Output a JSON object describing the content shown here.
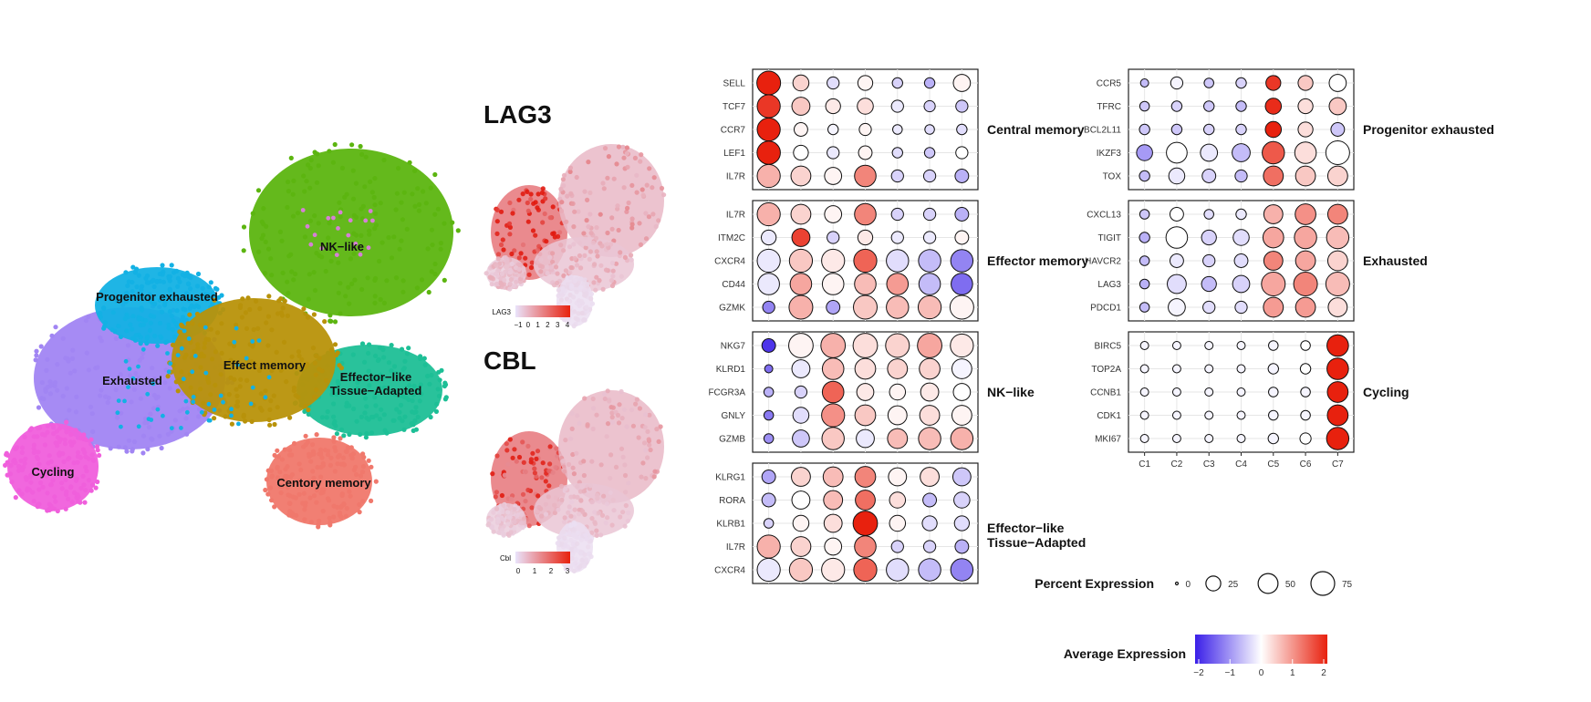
{
  "umap": {
    "clusters": [
      {
        "label": "NK−like",
        "color": "#5cb510"
      },
      {
        "label": "Progenitor exhausted",
        "color": "#13b1e4"
      },
      {
        "label": "Exhausted",
        "color": "#a185f3"
      },
      {
        "label": "Effect memory",
        "color": "#b8920a"
      },
      {
        "label": "Effector−like\nTissue−Adapted",
        "color": "#1dbf96"
      },
      {
        "label": "Cycling",
        "color": "#f05fdc"
      },
      {
        "label": "Centory memory",
        "color": "#f0786c"
      }
    ]
  },
  "feature_plots": [
    {
      "title": "LAG3",
      "legend_label": "LAG3",
      "ticks": [
        "−1",
        "0",
        "1",
        "2",
        "3",
        "4"
      ]
    },
    {
      "title": "CBL",
      "legend_label": "Cbl",
      "ticks": [
        "0",
        "1",
        "2",
        "3"
      ]
    }
  ],
  "chart_data": {
    "type": "dotplot",
    "x_categories": [
      "C1",
      "C2",
      "C3",
      "C4",
      "C5",
      "C6",
      "C7"
    ],
    "panels": [
      {
        "label": "Central memory",
        "column": 1,
        "rows": [
          {
            "gene": "SELL",
            "avg": [
              2.0,
              0.4,
              -0.3,
              0.1,
              -0.4,
              -0.7,
              0.1
            ],
            "pct": [
              75,
              30,
              15,
              25,
              10,
              10,
              35
            ]
          },
          {
            "gene": "TCF7",
            "avg": [
              1.8,
              0.5,
              0.2,
              0.3,
              -0.2,
              -0.4,
              -0.5
            ],
            "pct": [
              70,
              40,
              25,
              30,
              15,
              12,
              15
            ]
          },
          {
            "gene": "CCR7",
            "avg": [
              2.0,
              0.1,
              -0.1,
              0.1,
              -0.2,
              -0.3,
              -0.3
            ],
            "pct": [
              70,
              20,
              10,
              15,
              8,
              8,
              10
            ]
          },
          {
            "gene": "LEF1",
            "avg": [
              2.2,
              0.0,
              -0.2,
              0.1,
              -0.3,
              -0.5,
              0.0
            ],
            "pct": [
              72,
              25,
              15,
              20,
              10,
              10,
              15
            ]
          },
          {
            "gene": "IL7R",
            "avg": [
              0.7,
              0.4,
              0.1,
              1.1,
              -0.4,
              -0.4,
              -0.7
            ],
            "pct": [
              70,
              50,
              35,
              60,
              15,
              15,
              20
            ]
          }
        ]
      },
      {
        "label": "Effector memory",
        "column": 1,
        "rows": [
          {
            "gene": "IL7R",
            "avg": [
              0.7,
              0.4,
              0.1,
              1.1,
              -0.4,
              -0.4,
              -0.7
            ],
            "pct": [
              70,
              50,
              35,
              60,
              15,
              15,
              20
            ]
          },
          {
            "gene": "ITM2C",
            "avg": [
              -0.2,
              1.7,
              -0.4,
              0.2,
              -0.2,
              -0.2,
              0.1
            ],
            "pct": [
              25,
              40,
              15,
              25,
              15,
              15,
              20
            ]
          },
          {
            "gene": "CXCR4",
            "avg": [
              -0.2,
              0.5,
              0.2,
              1.4,
              -0.3,
              -0.6,
              -1.1
            ],
            "pct": [
              70,
              70,
              70,
              70,
              65,
              65,
              65
            ]
          },
          {
            "gene": "CD44",
            "avg": [
              -0.2,
              0.8,
              0.1,
              0.6,
              0.9,
              -0.6,
              -1.3
            ],
            "pct": [
              60,
              60,
              60,
              60,
              60,
              60,
              60
            ]
          },
          {
            "gene": "GZMK",
            "avg": [
              -1.1,
              0.7,
              -0.8,
              0.5,
              0.6,
              0.6,
              0.1
            ],
            "pct": [
              15,
              75,
              20,
              75,
              65,
              70,
              75
            ]
          }
        ]
      },
      {
        "label": "NK−like",
        "column": 1,
        "rows": [
          {
            "gene": "NKG7",
            "avg": [
              -1.8,
              0.1,
              0.7,
              0.3,
              0.4,
              0.8,
              0.2
            ],
            "pct": [
              20,
              80,
              80,
              80,
              75,
              80,
              70
            ]
          },
          {
            "gene": "KLRD1",
            "avg": [
              -1.3,
              -0.2,
              0.6,
              0.3,
              0.4,
              0.4,
              -0.1
            ],
            "pct": [
              5,
              40,
              60,
              55,
              50,
              55,
              50
            ]
          },
          {
            "gene": "FCGR3A",
            "avg": [
              -0.7,
              -0.4,
              1.4,
              0.2,
              0.1,
              0.2,
              0.0
            ],
            "pct": [
              8,
              15,
              60,
              35,
              30,
              40,
              35
            ]
          },
          {
            "gene": "GNLY",
            "avg": [
              -1.2,
              -0.3,
              1.0,
              0.5,
              0.1,
              0.3,
              0.1
            ],
            "pct": [
              8,
              30,
              70,
              55,
              45,
              50,
              50
            ]
          },
          {
            "gene": "GZMB",
            "avg": [
              -1.0,
              -0.5,
              0.5,
              -0.2,
              0.6,
              0.6,
              0.7
            ],
            "pct": [
              8,
              35,
              65,
              40,
              50,
              65,
              65
            ]
          }
        ]
      },
      {
        "label": "Effector−like\nTissue−Adapted",
        "column": 1,
        "rows": [
          {
            "gene": "KLRG1",
            "avg": [
              -0.8,
              0.4,
              0.6,
              1.1,
              0.1,
              0.3,
              -0.5
            ],
            "pct": [
              20,
              45,
              50,
              55,
              40,
              45,
              40
            ]
          },
          {
            "gene": "RORA",
            "avg": [
              -0.6,
              0.0,
              0.6,
              1.3,
              0.3,
              -0.6,
              -0.4
            ],
            "pct": [
              20,
              40,
              45,
              50,
              30,
              20,
              30
            ]
          },
          {
            "gene": "KLRB1",
            "avg": [
              -0.4,
              0.1,
              0.3,
              2.0,
              0.1,
              -0.3,
              -0.3
            ],
            "pct": [
              8,
              30,
              40,
              80,
              30,
              25,
              25
            ]
          },
          {
            "gene": "IL7R",
            "avg": [
              0.7,
              0.4,
              0.1,
              1.1,
              -0.4,
              -0.4,
              -0.7
            ],
            "pct": [
              70,
              50,
              35,
              60,
              15,
              15,
              20
            ]
          },
          {
            "gene": "CXCR4",
            "avg": [
              -0.2,
              0.5,
              0.2,
              1.4,
              -0.3,
              -0.6,
              -1.1
            ],
            "pct": [
              70,
              70,
              70,
              70,
              65,
              65,
              65
            ]
          }
        ]
      },
      {
        "label": "Progenitor exhausted",
        "column": 2,
        "rows": [
          {
            "gene": "CCR5",
            "avg": [
              -0.6,
              -0.1,
              -0.5,
              -0.4,
              1.8,
              0.5,
              0.0
            ],
            "pct": [
              5,
              15,
              8,
              10,
              25,
              25,
              35
            ]
          },
          {
            "gene": "TFRC",
            "avg": [
              -0.5,
              -0.4,
              -0.5,
              -0.6,
              1.9,
              0.3,
              0.5
            ],
            "pct": [
              8,
              10,
              10,
              10,
              30,
              25,
              35
            ]
          },
          {
            "gene": "BCL2L11",
            "avg": [
              -0.5,
              -0.5,
              -0.4,
              -0.4,
              2.0,
              0.3,
              -0.5
            ],
            "pct": [
              10,
              10,
              10,
              10,
              30,
              25,
              20
            ]
          },
          {
            "gene": "IKZF3",
            "avg": [
              -0.9,
              0.0,
              -0.2,
              -0.6,
              1.5,
              0.3,
              0.0
            ],
            "pct": [
              30,
              55,
              35,
              40,
              65,
              60,
              75
            ]
          },
          {
            "gene": "TOX",
            "avg": [
              -0.6,
              -0.2,
              -0.4,
              -0.6,
              1.3,
              0.5,
              0.4
            ],
            "pct": [
              10,
              30,
              20,
              15,
              50,
              50,
              50
            ]
          }
        ]
      },
      {
        "label": "Exhausted",
        "column": 2,
        "rows": [
          {
            "gene": "CXCL13",
            "avg": [
              -0.5,
              0.0,
              -0.3,
              -0.2,
              0.7,
              1.0,
              1.1
            ],
            "pct": [
              8,
              20,
              8,
              10,
              45,
              55,
              50
            ]
          },
          {
            "gene": "TIGIT",
            "avg": [
              -0.7,
              0.0,
              -0.4,
              -0.3,
              0.8,
              0.8,
              0.6
            ],
            "pct": [
              10,
              60,
              25,
              30,
              55,
              65,
              65
            ]
          },
          {
            "gene": "HAVCR2",
            "avg": [
              -0.6,
              -0.2,
              -0.4,
              -0.3,
              1.1,
              0.8,
              0.4
            ],
            "pct": [
              8,
              20,
              15,
              20,
              45,
              50,
              50
            ]
          },
          {
            "gene": "LAG3",
            "avg": [
              -0.7,
              -0.3,
              -0.6,
              -0.4,
              0.8,
              1.1,
              0.6
            ],
            "pct": [
              8,
              45,
              25,
              35,
              75,
              75,
              75
            ]
          },
          {
            "gene": "PDCD1",
            "avg": [
              -0.6,
              -0.1,
              -0.3,
              -0.3,
              0.9,
              0.9,
              0.3
            ],
            "pct": [
              8,
              35,
              15,
              15,
              50,
              50,
              45
            ]
          }
        ]
      },
      {
        "label": "Cycling",
        "column": 2,
        "rows": [
          {
            "gene": "BIRC5",
            "avg": [
              -0.1,
              -0.1,
              -0.1,
              -0.1,
              -0.1,
              0.0,
              2.2
            ],
            "pct": [
              5,
              5,
              5,
              5,
              8,
              8,
              60
            ]
          },
          {
            "gene": "TOP2A",
            "avg": [
              -0.1,
              -0.1,
              -0.1,
              -0.1,
              -0.1,
              0.0,
              2.2
            ],
            "pct": [
              5,
              5,
              5,
              5,
              10,
              10,
              60
            ]
          },
          {
            "gene": "CCNB1",
            "avg": [
              -0.1,
              -0.1,
              -0.1,
              -0.1,
              -0.1,
              -0.1,
              2.3
            ],
            "pct": [
              5,
              5,
              5,
              5,
              8,
              8,
              55
            ]
          },
          {
            "gene": "CDK1",
            "avg": [
              -0.1,
              -0.1,
              -0.1,
              -0.1,
              -0.1,
              -0.1,
              2.2
            ],
            "pct": [
              5,
              5,
              5,
              5,
              8,
              8,
              55
            ]
          },
          {
            "gene": "MKI67",
            "avg": [
              -0.1,
              -0.1,
              -0.1,
              -0.1,
              -0.1,
              0.0,
              2.3
            ],
            "pct": [
              5,
              5,
              5,
              5,
              10,
              12,
              65
            ]
          }
        ]
      }
    ],
    "size_legend": {
      "title": "Percent Expression",
      "values": [
        0,
        25,
        50,
        75
      ],
      "labels": [
        "0",
        "25",
        "50",
        "75"
      ]
    },
    "color_legend": {
      "title": "Average Expression",
      "range": [
        -2,
        2
      ],
      "ticks": [
        "−2",
        "−1",
        "0",
        "1",
        "2"
      ],
      "colors": [
        "#3a1fe8",
        "#ffffff",
        "#e8210e"
      ]
    }
  }
}
